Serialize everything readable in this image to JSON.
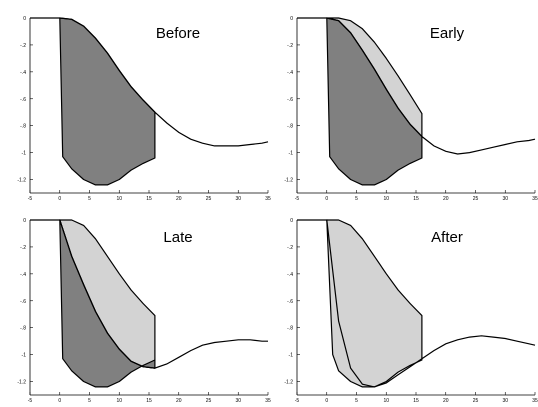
{
  "chart_data": [
    {
      "type": "area",
      "title": "Before",
      "xlim": [
        -5,
        35
      ],
      "ylim": [
        -1.3,
        0
      ],
      "xticks": [
        -5,
        0,
        5,
        10,
        15,
        20,
        25,
        30,
        35
      ],
      "yticks": [
        0,
        -0.2,
        -0.4,
        -0.6,
        -0.8,
        -1,
        -1.2
      ],
      "series": [
        {
          "role": "curve",
          "x": [
            -5,
            0,
            2,
            4,
            6,
            8,
            10,
            12,
            14,
            16,
            18,
            20,
            22,
            24,
            26,
            28,
            30,
            32,
            34,
            35
          ],
          "y": [
            0,
            0,
            -0.01,
            -0.06,
            -0.15,
            -0.26,
            -0.39,
            -0.51,
            -0.61,
            -0.7,
            -0.78,
            -0.85,
            -0.9,
            -0.93,
            -0.95,
            -0.95,
            -0.95,
            -0.94,
            -0.93,
            -0.92
          ]
        },
        {
          "role": "dark_region",
          "color": "#808080",
          "upper": {
            "x": [
              0,
              2,
              4,
              6,
              8,
              10,
              12,
              14,
              16
            ],
            "y": [
              0,
              -0.01,
              -0.06,
              -0.15,
              -0.26,
              -0.39,
              -0.51,
              -0.61,
              -0.7
            ]
          },
          "lower": {
            "x": [
              0.5,
              2,
              4,
              6,
              8,
              10,
              12,
              14,
              16
            ],
            "y": [
              -1.03,
              -1.12,
              -1.2,
              -1.24,
              -1.24,
              -1.2,
              -1.13,
              -1.08,
              -1.04
            ]
          }
        }
      ]
    },
    {
      "type": "area",
      "title": "Early",
      "xlim": [
        -5,
        35
      ],
      "ylim": [
        -1.3,
        0
      ],
      "xticks": [
        -5,
        0,
        5,
        10,
        15,
        20,
        25,
        30,
        35
      ],
      "yticks": [
        0,
        -0.2,
        -0.4,
        -0.6,
        -0.8,
        -1,
        -1.2
      ],
      "series": [
        {
          "role": "curve",
          "x": [
            -5,
            0,
            2,
            4,
            6,
            8,
            10,
            12,
            14,
            16,
            18,
            20,
            22,
            24,
            26,
            28,
            30,
            32,
            34,
            35
          ],
          "y": [
            0,
            0,
            -0.02,
            -0.11,
            -0.24,
            -0.38,
            -0.53,
            -0.67,
            -0.79,
            -0.88,
            -0.95,
            -0.99,
            -1.01,
            -1.0,
            -0.98,
            -0.96,
            -0.94,
            -0.92,
            -0.91,
            -0.9
          ]
        },
        {
          "role": "light_region",
          "color": "#d3d3d3",
          "upper": {
            "x": [
              0,
              2,
              4,
              6,
              8,
              10,
              12,
              14,
              16
            ],
            "y": [
              0,
              0,
              -0.02,
              -0.08,
              -0.18,
              -0.3,
              -0.43,
              -0.57,
              -0.71
            ]
          },
          "lower": {
            "x": [
              0,
              2,
              4,
              6,
              8,
              10,
              12,
              14,
              16
            ],
            "y": [
              0,
              -0.02,
              -0.11,
              -0.24,
              -0.38,
              -0.53,
              -0.67,
              -0.79,
              -0.88
            ]
          }
        },
        {
          "role": "dark_region",
          "color": "#808080",
          "upper": {
            "x": [
              0,
              2,
              4,
              6,
              8,
              10,
              12,
              14,
              16
            ],
            "y": [
              0,
              -0.02,
              -0.11,
              -0.24,
              -0.38,
              -0.53,
              -0.67,
              -0.79,
              -0.88
            ]
          },
          "lower": {
            "x": [
              0.5,
              2,
              4,
              6,
              8,
              10,
              12,
              14,
              16
            ],
            "y": [
              -1.03,
              -1.12,
              -1.2,
              -1.24,
              -1.24,
              -1.2,
              -1.13,
              -1.08,
              -1.04
            ]
          }
        }
      ]
    },
    {
      "type": "area",
      "title": "Late",
      "xlim": [
        -5,
        35
      ],
      "ylim": [
        -1.3,
        0
      ],
      "xticks": [
        -5,
        0,
        5,
        10,
        15,
        20,
        25,
        30,
        35
      ],
      "yticks": [
        0,
        -0.2,
        -0.4,
        -0.6,
        -0.8,
        -1,
        -1.2
      ],
      "series": [
        {
          "role": "curve",
          "x": [
            -5,
            0,
            2,
            4,
            6,
            8,
            10,
            12,
            14,
            16,
            18,
            20,
            22,
            24,
            26,
            28,
            30,
            32,
            34,
            35
          ],
          "y": [
            0,
            0,
            -0.27,
            -0.48,
            -0.68,
            -0.84,
            -0.96,
            -1.05,
            -1.09,
            -1.1,
            -1.07,
            -1.02,
            -0.97,
            -0.93,
            -0.91,
            -0.9,
            -0.89,
            -0.89,
            -0.9,
            -0.9
          ]
        },
        {
          "role": "light_region",
          "color": "#d3d3d3",
          "upper": {
            "x": [
              0,
              2,
              4,
              6,
              8,
              10,
              12,
              14,
              16
            ],
            "y": [
              0,
              0,
              -0.04,
              -0.14,
              -0.27,
              -0.4,
              -0.52,
              -0.62,
              -0.71
            ]
          },
          "lower": {
            "x": [
              0,
              2,
              4,
              6,
              8,
              10,
              12,
              14,
              16
            ],
            "y": [
              0,
              -0.27,
              -0.48,
              -0.68,
              -0.84,
              -0.96,
              -1.05,
              -1.09,
              -1.1
            ]
          }
        },
        {
          "role": "dark_region",
          "color": "#808080",
          "upper": {
            "x": [
              0,
              2,
              4,
              6,
              8,
              10,
              12,
              14,
              16
            ],
            "y": [
              0,
              -0.27,
              -0.48,
              -0.68,
              -0.84,
              -0.96,
              -1.05,
              -1.09,
              -1.1
            ]
          },
          "lower": {
            "x": [
              0.5,
              2,
              4,
              6,
              8,
              10,
              12,
              14,
              16
            ],
            "y": [
              -1.03,
              -1.12,
              -1.2,
              -1.24,
              -1.24,
              -1.2,
              -1.13,
              -1.08,
              -1.04
            ]
          }
        }
      ]
    },
    {
      "type": "area",
      "title": "After",
      "xlim": [
        -5,
        35
      ],
      "ylim": [
        -1.3,
        0
      ],
      "xticks": [
        -5,
        0,
        5,
        10,
        15,
        20,
        25,
        30,
        35
      ],
      "yticks": [
        0,
        -0.2,
        -0.4,
        -0.6,
        -0.8,
        -1,
        -1.2
      ],
      "series": [
        {
          "role": "curve",
          "x": [
            -5,
            0,
            2,
            4,
            6,
            8,
            10,
            12,
            14,
            16,
            18,
            20,
            22,
            24,
            26,
            28,
            30,
            32,
            34,
            35
          ],
          "y": [
            0,
            0,
            -0.75,
            -1.1,
            -1.22,
            -1.24,
            -1.21,
            -1.15,
            -1.09,
            -1.03,
            -0.97,
            -0.92,
            -0.89,
            -0.87,
            -0.86,
            -0.87,
            -0.88,
            -0.9,
            -0.92,
            -0.93
          ]
        },
        {
          "role": "light_region",
          "color": "#d3d3d3",
          "upper": {
            "x": [
              0,
              2,
              4,
              6,
              8,
              10,
              12,
              14,
              16
            ],
            "y": [
              0,
              0,
              -0.04,
              -0.14,
              -0.27,
              -0.4,
              -0.52,
              -0.62,
              -0.71
            ]
          },
          "lower": {
            "x": [
              0,
              1,
              2,
              4,
              6,
              8,
              10,
              12,
              14,
              16
            ],
            "y": [
              0,
              -1.0,
              -1.12,
              -1.2,
              -1.24,
              -1.24,
              -1.2,
              -1.13,
              -1.08,
              -1.04
            ]
          }
        }
      ]
    }
  ]
}
